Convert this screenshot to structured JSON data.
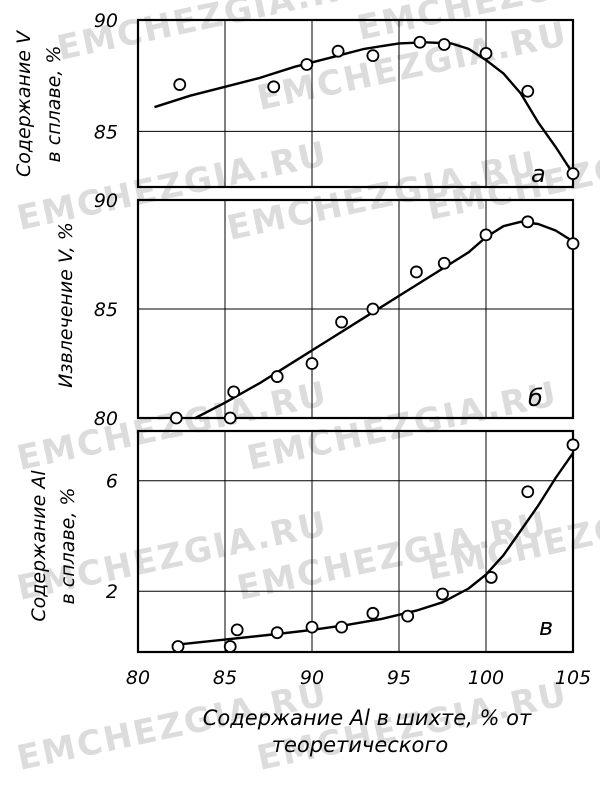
{
  "watermark": "EMCHEZGIA.RU",
  "chart_data": [
    {
      "type": "scatter",
      "panel_letter": "а",
      "ylabel_lines": [
        "Содержание V",
        "в сплаве, %"
      ],
      "xlim": [
        80,
        105
      ],
      "ylim": [
        82.5,
        90
      ],
      "y_ticks": [
        "90",
        "85"
      ],
      "grid": true,
      "points": {
        "x": [
          82.4,
          87.8,
          89.7,
          91.5,
          93.5,
          96.2,
          97.6,
          100.0,
          102.4,
          105.0
        ],
        "y": [
          87.1,
          87.0,
          88.0,
          88.6,
          88.4,
          89.0,
          88.9,
          88.5,
          86.8,
          83.1
        ]
      },
      "curve": {
        "x": [
          81.0,
          83,
          85,
          87,
          89,
          91,
          93,
          95,
          96.5,
          98,
          99,
          100,
          101,
          102,
          103,
          104,
          105
        ],
        "y": [
          86.1,
          86.6,
          87.0,
          87.4,
          87.9,
          88.3,
          88.7,
          88.95,
          89.0,
          88.95,
          88.7,
          88.2,
          87.6,
          86.7,
          85.4,
          84.3,
          83.1
        ]
      }
    },
    {
      "type": "scatter",
      "panel_letter": "б",
      "ylabel_lines": [
        "Извлечение V, %"
      ],
      "xlim": [
        80,
        105
      ],
      "ylim": [
        80,
        90
      ],
      "y_ticks": [
        "90",
        "85",
        "80"
      ],
      "grid": true,
      "points": {
        "x": [
          82.2,
          85.3,
          85.5,
          88.0,
          90.0,
          91.7,
          93.5,
          96.0,
          97.6,
          100.0,
          102.4,
          105.0
        ],
        "y": [
          80.0,
          80.0,
          81.2,
          81.9,
          82.5,
          84.4,
          85.0,
          86.7,
          87.1,
          88.4,
          89.0,
          88.0
        ]
      },
      "curve": {
        "x": [
          83.3,
          85,
          87,
          89,
          91,
          93,
          95,
          97,
          99,
          100,
          101,
          102,
          103,
          104,
          105
        ],
        "y": [
          80.0,
          80.7,
          81.6,
          82.6,
          83.6,
          84.6,
          85.6,
          86.6,
          87.6,
          88.3,
          88.8,
          89.0,
          88.9,
          88.6,
          88.1
        ]
      }
    },
    {
      "type": "scatter",
      "panel_letter": "в",
      "ylabel_lines": [
        "Содержание Al",
        "в сплаве, %"
      ],
      "xlim": [
        80,
        105
      ],
      "ylim": [
        -0.2,
        7.8
      ],
      "y_ticks": [
        "6",
        "2"
      ],
      "x_ticks": [
        "80",
        "85",
        "90",
        "95",
        "100",
        "105"
      ],
      "xlabel_lines": [
        "Содержание Al в шихте, % от",
        "теоретического"
      ],
      "grid": true,
      "points": {
        "x": [
          82.3,
          85.3,
          85.7,
          88.0,
          90.0,
          91.7,
          93.5,
          95.5,
          97.5,
          100.3,
          102.4,
          105.0
        ],
        "y": [
          0.0,
          0.0,
          0.6,
          0.5,
          0.7,
          0.7,
          1.2,
          1.1,
          1.9,
          2.5,
          5.6,
          7.3
        ]
      },
      "curve": {
        "x": [
          82.0,
          85,
          88,
          90,
          92,
          94,
          96,
          97.5,
          99,
          100,
          101,
          102,
          103,
          104,
          105
        ],
        "y": [
          0.05,
          0.25,
          0.45,
          0.6,
          0.78,
          1.0,
          1.3,
          1.6,
          2.1,
          2.6,
          3.3,
          4.2,
          5.1,
          6.1,
          7.0
        ]
      }
    }
  ]
}
